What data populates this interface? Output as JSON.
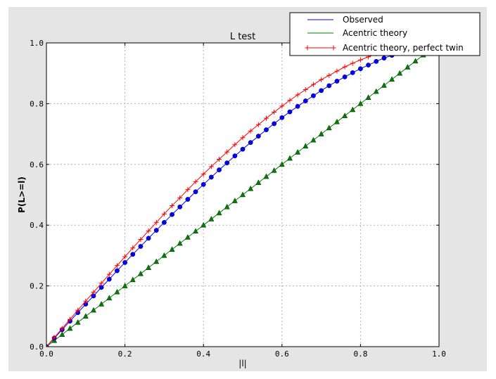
{
  "chart_data": {
    "type": "line",
    "title": "L test",
    "xlabel": "|l|",
    "ylabel": "P(L>=l)",
    "xlim": [
      0,
      1
    ],
    "ylim": [
      0,
      1
    ],
    "xticks": [
      "0.0",
      "0.2",
      "0.4",
      "0.6",
      "0.8",
      "1.0"
    ],
    "yticks": [
      "0.0",
      "0.2",
      "0.4",
      "0.6",
      "0.8",
      "1.0"
    ],
    "grid": true,
    "legend_placement": "top-right",
    "x": [
      0,
      0.02,
      0.04,
      0.06,
      0.08,
      0.1,
      0.12,
      0.14,
      0.16,
      0.18,
      0.2,
      0.22,
      0.24,
      0.26,
      0.28,
      0.3,
      0.32,
      0.34,
      0.36,
      0.38,
      0.4,
      0.42,
      0.44,
      0.46,
      0.48,
      0.5,
      0.52,
      0.54,
      0.56,
      0.58,
      0.6,
      0.62,
      0.64,
      0.66,
      0.68,
      0.7,
      0.72,
      0.74,
      0.76,
      0.78,
      0.8,
      0.82,
      0.84,
      0.86,
      0.88,
      0.9,
      0.92,
      0.94,
      0.96,
      0.98,
      1.0
    ],
    "series": [
      {
        "name": "Observed",
        "color": "#0000ff",
        "marker": "circle",
        "values": [
          0,
          0.028,
          0.056,
          0.084,
          0.112,
          0.14,
          0.167,
          0.195,
          0.222,
          0.25,
          0.277,
          0.304,
          0.33,
          0.357,
          0.383,
          0.409,
          0.435,
          0.46,
          0.485,
          0.51,
          0.534,
          0.558,
          0.582,
          0.605,
          0.628,
          0.65,
          0.672,
          0.693,
          0.714,
          0.734,
          0.754,
          0.773,
          0.791,
          0.809,
          0.826,
          0.843,
          0.859,
          0.874,
          0.888,
          0.902,
          0.915,
          0.927,
          0.939,
          0.95,
          0.959,
          0.968,
          0.977,
          0.984,
          0.99,
          0.996,
          1.0
        ]
      },
      {
        "name": "Acentric theory",
        "color": "#008000",
        "marker": "triangle",
        "values": [
          0,
          0.02,
          0.04,
          0.06,
          0.08,
          0.1,
          0.12,
          0.14,
          0.16,
          0.18,
          0.2,
          0.22,
          0.24,
          0.26,
          0.28,
          0.3,
          0.32,
          0.34,
          0.36,
          0.38,
          0.4,
          0.42,
          0.44,
          0.46,
          0.48,
          0.5,
          0.52,
          0.54,
          0.56,
          0.58,
          0.6,
          0.62,
          0.64,
          0.66,
          0.68,
          0.7,
          0.72,
          0.74,
          0.76,
          0.78,
          0.8,
          0.82,
          0.84,
          0.86,
          0.88,
          0.9,
          0.92,
          0.94,
          0.96,
          0.98,
          1.0
        ]
      },
      {
        "name": "Acentric theory, perfect twin",
        "color": "#ff0000",
        "marker": "plus",
        "values": [
          0,
          0.03,
          0.06,
          0.09,
          0.12,
          0.15,
          0.179,
          0.209,
          0.238,
          0.267,
          0.296,
          0.325,
          0.353,
          0.381,
          0.409,
          0.437,
          0.464,
          0.49,
          0.517,
          0.543,
          0.568,
          0.593,
          0.617,
          0.641,
          0.665,
          0.688,
          0.71,
          0.731,
          0.752,
          0.772,
          0.792,
          0.811,
          0.829,
          0.846,
          0.863,
          0.879,
          0.893,
          0.907,
          0.921,
          0.933,
          0.944,
          0.954,
          0.964,
          0.972,
          0.979,
          0.986,
          0.991,
          0.995,
          0.998,
          0.999,
          1.0
        ]
      }
    ]
  }
}
